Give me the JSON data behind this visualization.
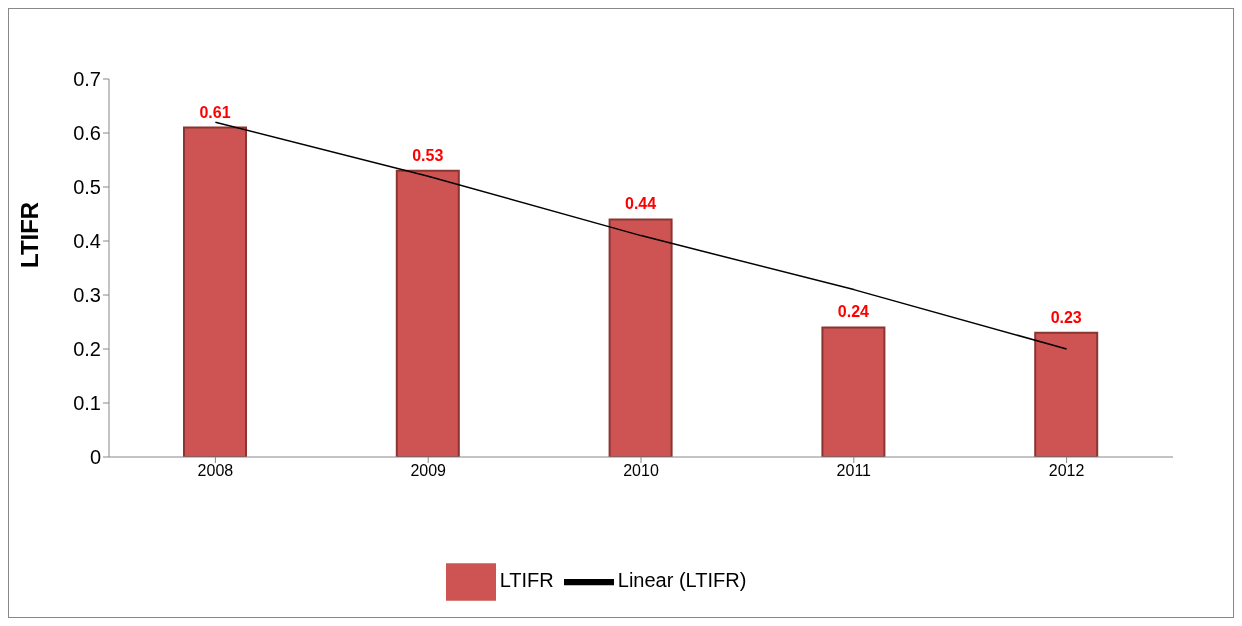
{
  "chart_data": {
    "type": "bar",
    "ylabel": "LTIFR",
    "categories": [
      "2008",
      "2009",
      "2010",
      "2011",
      "2012"
    ],
    "series": [
      {
        "name": "LTIFR",
        "color": "#cd5452",
        "values": [
          0.61,
          0.53,
          0.44,
          0.24,
          0.23
        ],
        "value_labels": [
          "0.61",
          "0.53",
          "0.44",
          "0.24",
          "0.23"
        ]
      },
      {
        "name": "Linear (LTIFR)",
        "type": "line",
        "color": "#000000",
        "values": [
          0.62,
          0.52,
          0.41,
          0.31,
          0.2
        ]
      }
    ],
    "ylim": [
      0,
      0.7
    ],
    "yticks": [
      0,
      0.1,
      0.2,
      0.3,
      0.4,
      0.5,
      0.6,
      0.7
    ],
    "legend": "bottom",
    "grid": false,
    "marker": "none"
  }
}
